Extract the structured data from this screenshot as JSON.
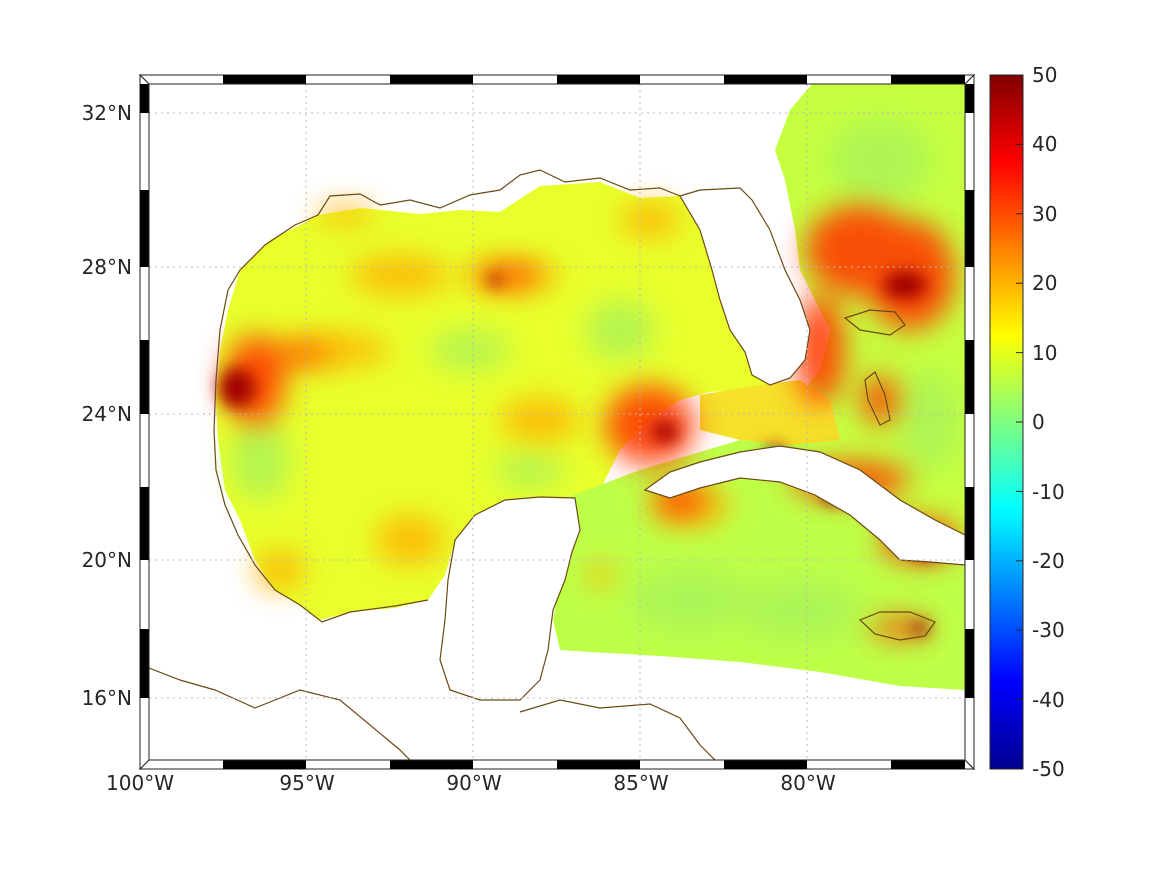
{
  "map": {
    "x_ticks": [
      "100°W",
      "95°W",
      "90°W",
      "85°W",
      "80°W"
    ],
    "y_ticks": [
      "32°N",
      "28°N",
      "24°N",
      "20°N",
      "16°N"
    ],
    "extent": {
      "lon": [
        -100,
        -75
      ],
      "lat": [
        14.3,
        33
      ]
    },
    "grid": true,
    "frame_style": "alternating black/white degree bar"
  },
  "colorbar": {
    "ticks": [
      "50",
      "40",
      "30",
      "20",
      "10",
      "0",
      "-10",
      "-20",
      "-30",
      "-40",
      "-50"
    ],
    "range": [
      -50,
      50
    ],
    "colormap": "jet",
    "placement": "right"
  },
  "colors": {
    "coastline": "#6b4a14",
    "land": "#ffffff",
    "field_low": "#7fff7f",
    "field_mid": "#ffff00",
    "field_high": "#ff0000",
    "field_max": "#800000"
  },
  "chart_data": {
    "type": "heatmap",
    "xlabel": "",
    "ylabel": "",
    "xlim": [
      -100,
      -75
    ],
    "ylim": [
      14.3,
      33
    ],
    "colorbar_range": [
      -50,
      50
    ],
    "grid": true
  }
}
